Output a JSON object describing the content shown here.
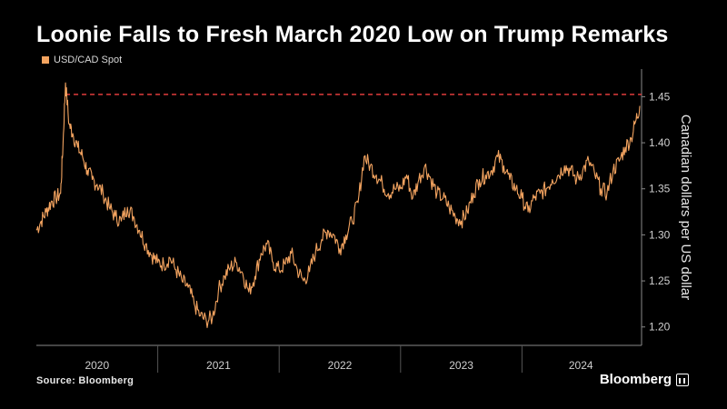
{
  "title": "Loonie Falls to Fresh March 2020 Low on Trump Remarks",
  "legend_label": "USD/CAD Spot",
  "source": "Source: Bloomberg",
  "brand": "Bloomberg",
  "colors": {
    "line": "#f4a460",
    "reference": "#e03c3c",
    "background": "#000000",
    "axis": "#8a8a8a"
  },
  "chart_data": {
    "type": "line",
    "title": "Loonie Falls to Fresh March 2020 Low on Trump Remarks",
    "xlabel": "",
    "ylabel": "Canadian dollars per US dollar",
    "xlim": [
      2020.0,
      2024.97
    ],
    "ylim": [
      1.18,
      1.48
    ],
    "yticks": [
      1.2,
      1.25,
      1.3,
      1.35,
      1.4,
      1.45
    ],
    "ytick_labels": [
      "1.20",
      "1.25",
      "1.30",
      "1.35",
      "1.40",
      "1.45"
    ],
    "xtick_labels": [
      "2020",
      "2021",
      "2022",
      "2023",
      "2024"
    ],
    "year_bounds": [
      2020,
      2021,
      2022,
      2023,
      2024,
      2025
    ],
    "grid": false,
    "legend_position": "top-left",
    "reference_line": {
      "y": 1.4525,
      "style": "dashed",
      "color": "#e03c3c"
    },
    "series": [
      {
        "name": "USD/CAD Spot",
        "x": [
          2020.0,
          2020.04,
          2020.08,
          2020.12,
          2020.16,
          2020.2,
          2020.22,
          2020.24,
          2020.27,
          2020.3,
          2020.34,
          2020.38,
          2020.42,
          2020.46,
          2020.5,
          2020.55,
          2020.6,
          2020.65,
          2020.7,
          2020.75,
          2020.8,
          2020.85,
          2020.9,
          2020.95,
          2021.0,
          2021.05,
          2021.1,
          2021.15,
          2021.2,
          2021.25,
          2021.3,
          2021.35,
          2021.4,
          2021.45,
          2021.5,
          2021.55,
          2021.6,
          2021.65,
          2021.7,
          2021.75,
          2021.8,
          2021.85,
          2021.9,
          2021.95,
          2022.0,
          2022.05,
          2022.1,
          2022.15,
          2022.2,
          2022.25,
          2022.3,
          2022.35,
          2022.4,
          2022.45,
          2022.5,
          2022.55,
          2022.6,
          2022.65,
          2022.7,
          2022.75,
          2022.8,
          2022.85,
          2022.9,
          2022.95,
          2023.0,
          2023.05,
          2023.1,
          2023.15,
          2023.2,
          2023.25,
          2023.3,
          2023.35,
          2023.4,
          2023.45,
          2023.5,
          2023.55,
          2023.6,
          2023.65,
          2023.7,
          2023.75,
          2023.8,
          2023.85,
          2023.9,
          2023.95,
          2024.0,
          2024.05,
          2024.1,
          2024.15,
          2024.2,
          2024.25,
          2024.3,
          2024.35,
          2024.4,
          2024.45,
          2024.5,
          2024.55,
          2024.6,
          2024.65,
          2024.7,
          2024.75,
          2024.8,
          2024.85,
          2024.9,
          2024.94,
          2024.97
        ],
        "values": [
          1.305,
          1.315,
          1.325,
          1.335,
          1.34,
          1.345,
          1.4,
          1.465,
          1.42,
          1.41,
          1.395,
          1.385,
          1.37,
          1.36,
          1.355,
          1.345,
          1.33,
          1.32,
          1.315,
          1.33,
          1.32,
          1.305,
          1.29,
          1.278,
          1.27,
          1.268,
          1.275,
          1.262,
          1.25,
          1.243,
          1.225,
          1.212,
          1.207,
          1.21,
          1.24,
          1.255,
          1.265,
          1.27,
          1.258,
          1.238,
          1.255,
          1.28,
          1.29,
          1.27,
          1.262,
          1.268,
          1.28,
          1.262,
          1.25,
          1.26,
          1.282,
          1.295,
          1.305,
          1.3,
          1.285,
          1.3,
          1.315,
          1.335,
          1.385,
          1.375,
          1.365,
          1.355,
          1.345,
          1.35,
          1.35,
          1.365,
          1.34,
          1.36,
          1.375,
          1.36,
          1.345,
          1.34,
          1.33,
          1.32,
          1.315,
          1.325,
          1.345,
          1.36,
          1.365,
          1.37,
          1.385,
          1.375,
          1.36,
          1.35,
          1.34,
          1.325,
          1.34,
          1.345,
          1.35,
          1.36,
          1.365,
          1.375,
          1.37,
          1.36,
          1.37,
          1.38,
          1.365,
          1.35,
          1.345,
          1.37,
          1.38,
          1.395,
          1.405,
          1.425,
          1.44
        ]
      }
    ]
  }
}
